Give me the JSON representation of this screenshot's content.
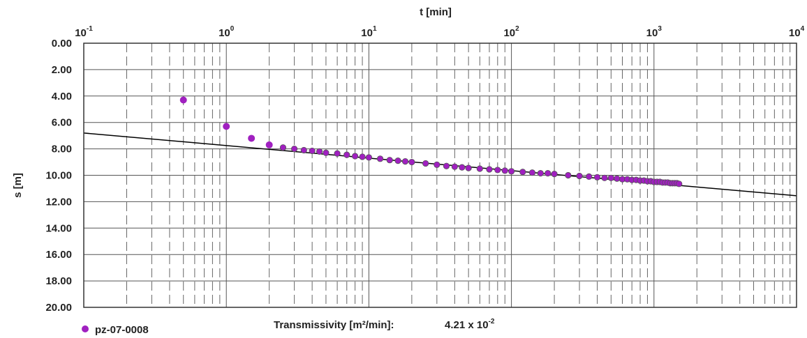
{
  "chart_data": {
    "type": "scatter",
    "x_scale": "log",
    "xlabel": "t [min]",
    "ylabel": "s [m]",
    "xlim": [
      0.1,
      10000
    ],
    "ylim": [
      0,
      20
    ],
    "y_inverted": true,
    "x_ticks": [
      {
        "base": "10",
        "exp": "-1"
      },
      {
        "base": "10",
        "exp": "0"
      },
      {
        "base": "10",
        "exp": "1"
      },
      {
        "base": "10",
        "exp": "2"
      },
      {
        "base": "10",
        "exp": "3"
      },
      {
        "base": "10",
        "exp": "4"
      }
    ],
    "y_ticks": [
      "0.00",
      "2.00",
      "4.00",
      "6.00",
      "8.00",
      "10.00",
      "12.00",
      "14.00",
      "16.00",
      "18.00",
      "20.00"
    ],
    "grid": true,
    "legend_position": "bottom-left",
    "series": [
      {
        "name": "pz-07-0008",
        "color": "#a020c0",
        "marker": "circle",
        "x": [
          0.5,
          1.0,
          1.5,
          2.0,
          2.5,
          3.0,
          3.5,
          4.0,
          4.5,
          5.0,
          6.0,
          7.0,
          8.0,
          9.0,
          10,
          12,
          14,
          16,
          18,
          20,
          25,
          30,
          35,
          40,
          45,
          50,
          60,
          70,
          80,
          90,
          100,
          120,
          140,
          160,
          180,
          200,
          250,
          300,
          350,
          400,
          450,
          500,
          550,
          600,
          650,
          700,
          750,
          800,
          850,
          900,
          950,
          1000,
          1050,
          1100,
          1150,
          1200,
          1250,
          1300,
          1350,
          1400,
          1450,
          1500
        ],
        "y": [
          4.3,
          6.3,
          7.2,
          7.7,
          7.9,
          8.0,
          8.1,
          8.15,
          8.2,
          8.3,
          8.35,
          8.45,
          8.55,
          8.6,
          8.65,
          8.75,
          8.85,
          8.9,
          8.95,
          9.0,
          9.1,
          9.2,
          9.3,
          9.35,
          9.4,
          9.45,
          9.5,
          9.55,
          9.6,
          9.65,
          9.7,
          9.75,
          9.8,
          9.85,
          9.85,
          9.9,
          10.0,
          10.05,
          10.1,
          10.15,
          10.2,
          10.2,
          10.25,
          10.3,
          10.3,
          10.35,
          10.35,
          10.4,
          10.4,
          10.45,
          10.45,
          10.5,
          10.5,
          10.5,
          10.55,
          10.55,
          10.55,
          10.6,
          10.6,
          10.6,
          10.6,
          10.65
        ]
      }
    ],
    "fit_line": {
      "name": "",
      "color": "#000000",
      "x": [
        0.1,
        10000
      ],
      "y": [
        6.8,
        11.55
      ]
    }
  },
  "annotations": {
    "transmissivity_label": "Transmissivity [m²/min]:",
    "transmissivity_value_mantissa": "4.21 x 10",
    "transmissivity_value_exp": "-2"
  }
}
